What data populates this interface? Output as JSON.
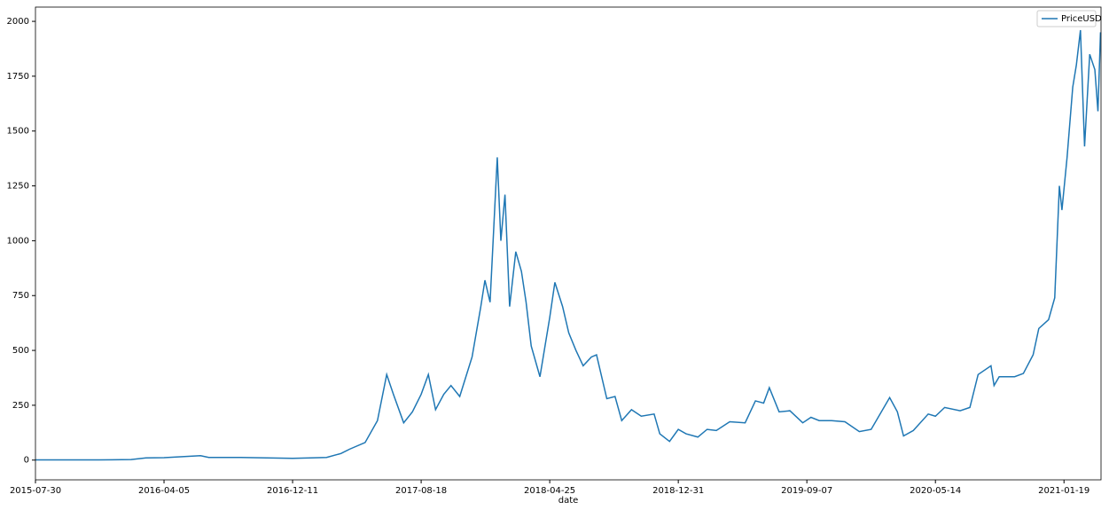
{
  "chart_data": {
    "type": "line",
    "xlabel": "date",
    "x": [
      "2015-07-30",
      "2015-09-01",
      "2015-12-01",
      "2016-02-01",
      "2016-03-01",
      "2016-04-05",
      "2016-06-15",
      "2016-07-01",
      "2016-09-01",
      "2016-12-11",
      "2017-01-15",
      "2017-02-15",
      "2017-03-15",
      "2017-04-01",
      "2017-05-01",
      "2017-05-25",
      "2017-06-12",
      "2017-06-25",
      "2017-07-15",
      "2017-08-01",
      "2017-08-18",
      "2017-09-01",
      "2017-09-15",
      "2017-10-01",
      "2017-10-15",
      "2017-11-01",
      "2017-11-25",
      "2017-12-12",
      "2017-12-20",
      "2017-12-30",
      "2018-01-13",
      "2018-01-20",
      "2018-01-28",
      "2018-02-06",
      "2018-02-18",
      "2018-03-01",
      "2018-03-10",
      "2018-03-20",
      "2018-04-06",
      "2018-04-25",
      "2018-05-05",
      "2018-05-20",
      "2018-06-01",
      "2018-06-15",
      "2018-06-29",
      "2018-07-15",
      "2018-07-25",
      "2018-08-14",
      "2018-08-30",
      "2018-09-12",
      "2018-10-01",
      "2018-10-20",
      "2018-11-14",
      "2018-11-25",
      "2018-12-14",
      "2018-12-31",
      "2019-01-15",
      "2019-02-07",
      "2019-02-25",
      "2019-03-15",
      "2019-04-10",
      "2019-05-10",
      "2019-05-30",
      "2019-06-15",
      "2019-06-26",
      "2019-07-15",
      "2019-08-05",
      "2019-08-30",
      "2019-09-15",
      "2019-10-01",
      "2019-10-25",
      "2019-11-20",
      "2019-12-18",
      "2020-01-10",
      "2020-02-15",
      "2020-03-01",
      "2020-03-13",
      "2020-04-01",
      "2020-04-30",
      "2020-05-14",
      "2020-06-01",
      "2020-07-01",
      "2020-07-20",
      "2020-08-05",
      "2020-08-30",
      "2020-09-05",
      "2020-09-15",
      "2020-10-15",
      "2020-11-01",
      "2020-11-20",
      "2020-12-01",
      "2020-12-20",
      "2021-01-01",
      "2021-01-10",
      "2021-01-15",
      "2021-01-25",
      "2021-02-05",
      "2021-02-12",
      "2021-02-20",
      "2021-02-28",
      "2021-03-10",
      "2021-03-20",
      "2021-03-26",
      "2021-03-31"
    ],
    "series": [
      {
        "name": "PriceUSD",
        "color": "#1f77b4",
        "values": [
          1,
          1,
          1,
          2.5,
          10,
          11,
          20,
          12,
          12,
          8,
          10,
          12,
          30,
          50,
          80,
          180,
          390,
          300,
          170,
          220,
          300,
          390,
          230,
          300,
          340,
          290,
          470,
          700,
          820,
          720,
          1380,
          1000,
          1210,
          700,
          950,
          860,
          720,
          520,
          380,
          650,
          810,
          700,
          580,
          500,
          430,
          470,
          480,
          280,
          290,
          180,
          230,
          200,
          210,
          120,
          85,
          140,
          120,
          105,
          140,
          135,
          175,
          170,
          270,
          260,
          330,
          220,
          225,
          170,
          195,
          180,
          180,
          175,
          130,
          140,
          285,
          220,
          110,
          135,
          210,
          200,
          240,
          225,
          240,
          390,
          430,
          340,
          380,
          380,
          395,
          480,
          600,
          640,
          740,
          1250,
          1140,
          1380,
          1700,
          1800,
          1960,
          1430,
          1850,
          1780,
          1590,
          1950
        ]
      }
    ],
    "xlim": [
      "2015-07-30",
      "2021-04-01"
    ],
    "xticks": [
      "2015-07-30",
      "2016-04-05",
      "2016-12-11",
      "2017-08-18",
      "2018-04-25",
      "2018-12-31",
      "2019-09-07",
      "2020-05-14",
      "2021-01-19"
    ],
    "ylim": [
      -90,
      2065
    ],
    "yticks": [
      0,
      250,
      500,
      750,
      1000,
      1250,
      1500,
      1750,
      2000
    ],
    "legend": "upper right"
  }
}
